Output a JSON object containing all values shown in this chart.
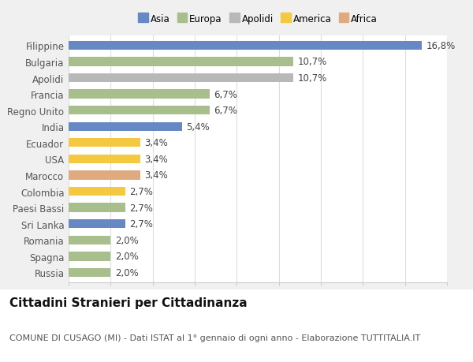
{
  "categories": [
    "Filippine",
    "Bulgaria",
    "Apolidi",
    "Francia",
    "Regno Unito",
    "India",
    "Ecuador",
    "USA",
    "Marocco",
    "Colombia",
    "Paesi Bassi",
    "Sri Lanka",
    "Romania",
    "Spagna",
    "Russia"
  ],
  "values": [
    16.8,
    10.7,
    10.7,
    6.7,
    6.7,
    5.4,
    3.4,
    3.4,
    3.4,
    2.7,
    2.7,
    2.7,
    2.0,
    2.0,
    2.0
  ],
  "bar_colors": [
    "#6688c3",
    "#a8be8c",
    "#b8b8b8",
    "#a8be8c",
    "#a8be8c",
    "#6688c3",
    "#f5c842",
    "#f5c842",
    "#e0aa80",
    "#f5c842",
    "#a8be8c",
    "#6688c3",
    "#a8be8c",
    "#a8be8c",
    "#a8be8c"
  ],
  "labels": [
    "16,8%",
    "10,7%",
    "10,7%",
    "6,7%",
    "6,7%",
    "5,4%",
    "3,4%",
    "3,4%",
    "3,4%",
    "2,7%",
    "2,7%",
    "2,7%",
    "2,0%",
    "2,0%",
    "2,0%"
  ],
  "xlim": [
    0,
    18
  ],
  "xticks": [
    0,
    2,
    4,
    6,
    8,
    10,
    12,
    14,
    16,
    18
  ],
  "legend_labels": [
    "Asia",
    "Europa",
    "Apolidi",
    "America",
    "Africa"
  ],
  "legend_colors": [
    "#6688c3",
    "#a8be8c",
    "#b8b8b8",
    "#f5c842",
    "#e0aa80"
  ],
  "title": "Cittadini Stranieri per Cittadinanza",
  "subtitle": "COMUNE DI CUSAGO (MI) - Dati ISTAT al 1° gennaio di ogni anno - Elaborazione TUTTITALIA.IT",
  "background_color": "#f0f0f0",
  "plot_bg_color": "#ffffff",
  "bar_height": 0.55,
  "label_fontsize": 8.5,
  "tick_fontsize": 8.5,
  "title_fontsize": 11,
  "subtitle_fontsize": 8
}
